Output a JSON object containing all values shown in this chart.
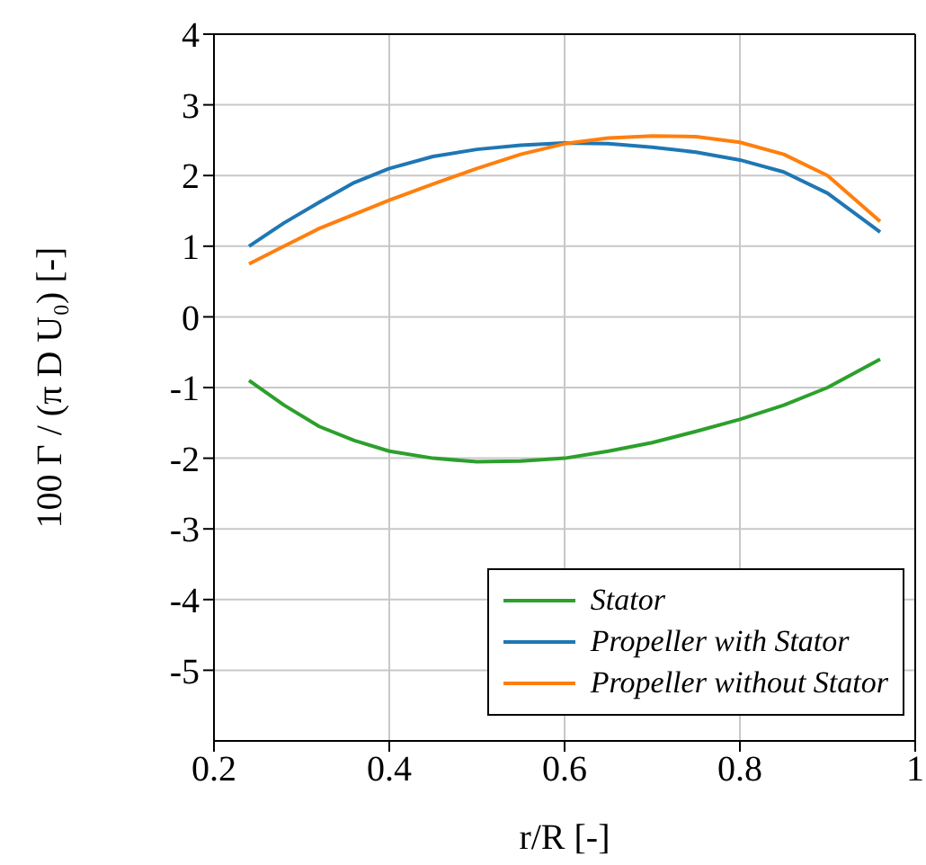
{
  "chart_data": {
    "type": "line",
    "xlabel": "r/R [-]",
    "ylabel": "100 Γ / (π D U₀) [-]",
    "x": [
      0.24,
      0.28,
      0.32,
      0.36,
      0.4,
      0.45,
      0.5,
      0.55,
      0.6,
      0.65,
      0.7,
      0.75,
      0.8,
      0.85,
      0.9,
      0.96
    ],
    "series": [
      {
        "name": "Stator",
        "color": "#2ca02c",
        "values": [
          -0.9,
          -1.25,
          -1.55,
          -1.75,
          -1.9,
          -2.0,
          -2.05,
          -2.04,
          -2.0,
          -1.9,
          -1.78,
          -1.62,
          -1.45,
          -1.25,
          -1.0,
          -0.6
        ]
      },
      {
        "name": "Propeller with Stator",
        "color": "#1f77b4",
        "values": [
          1.0,
          1.33,
          1.62,
          1.9,
          2.1,
          2.27,
          2.37,
          2.43,
          2.46,
          2.45,
          2.4,
          2.33,
          2.22,
          2.05,
          1.75,
          1.2
        ]
      },
      {
        "name": "Propeller without Stator",
        "color": "#ff7f0e",
        "values": [
          0.75,
          1.0,
          1.25,
          1.45,
          1.65,
          1.88,
          2.1,
          2.3,
          2.45,
          2.53,
          2.56,
          2.55,
          2.47,
          2.3,
          2.0,
          1.35
        ]
      }
    ],
    "xlim": [
      0.2,
      1
    ],
    "xticks": [
      0.2,
      0.4,
      0.6,
      0.8,
      1
    ],
    "ylim": [
      -6,
      4
    ],
    "yticks": [
      -5,
      -4,
      -3,
      -2,
      -1,
      0,
      1,
      2,
      3,
      4
    ],
    "grid": true,
    "legend": "bottom right",
    "marker": "none",
    "line_style": "solid"
  }
}
